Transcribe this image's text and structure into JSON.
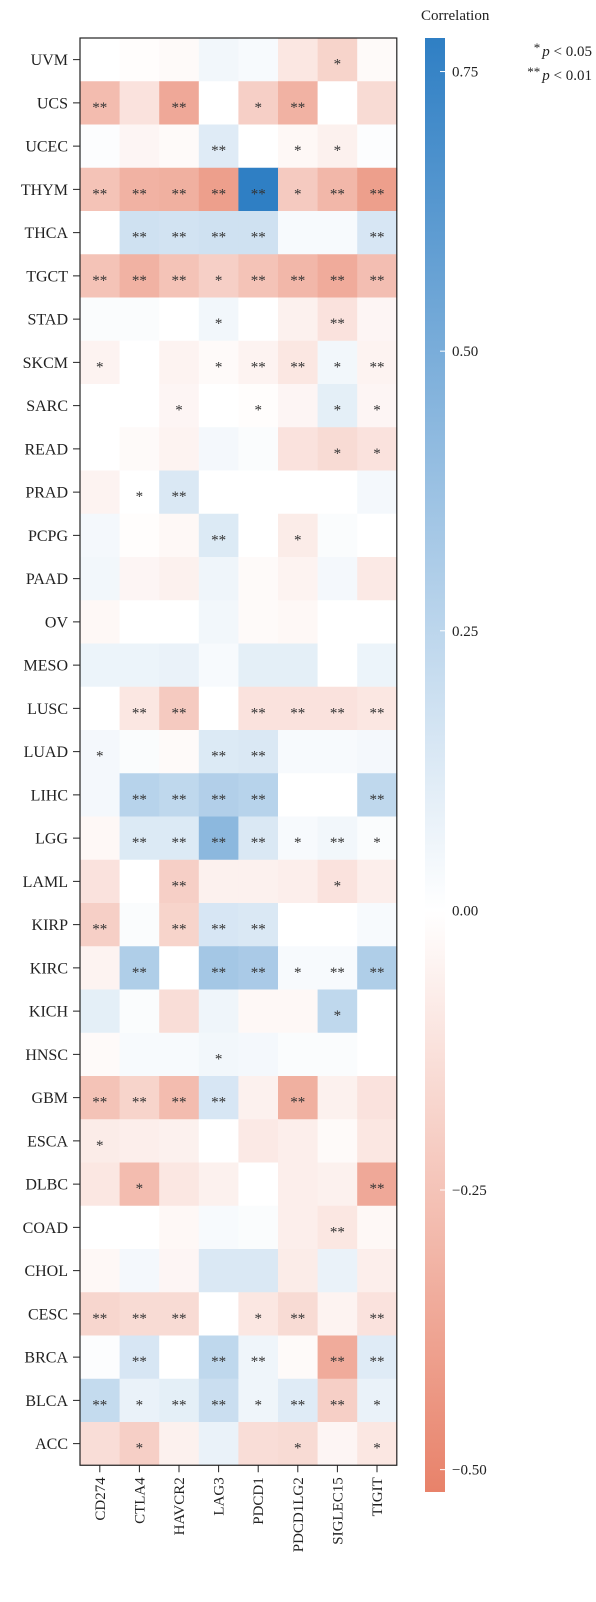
{
  "chart_data": {
    "type": "heatmap",
    "legend_title": "Correlation",
    "colorbar_ticks": [
      "0.75",
      "0.50",
      "0.25",
      "0.00",
      "−0.25",
      "−0.50"
    ],
    "colorbar_tick_values": [
      0.75,
      0.5,
      0.25,
      0.0,
      -0.25,
      -0.5
    ],
    "value_range": [
      -0.52,
      0.78
    ],
    "significance_legend": [
      {
        "stars": "*",
        "label_p": "p",
        "label_rest": " < 0.05"
      },
      {
        "stars": "**",
        "label_p": "p",
        "label_rest": " < 0.01"
      }
    ],
    "columns": [
      "CD274",
      "CTLA4",
      "HAVCR2",
      "LAG3",
      "PDCD1",
      "PDCD1LG2",
      "SIGLEC15",
      "TIGIT"
    ],
    "rows": [
      "UVM",
      "UCS",
      "UCEC",
      "THYM",
      "THCA",
      "TGCT",
      "STAD",
      "SKCM",
      "SARC",
      "READ",
      "PRAD",
      "PCPG",
      "PAAD",
      "OV",
      "MESO",
      "LUSC",
      "LUAD",
      "LIHC",
      "LGG",
      "LAML",
      "KIRP",
      "KIRC",
      "KICH",
      "HNSC",
      "GBM",
      "ESCA",
      "DLBC",
      "COAD",
      "CHOL",
      "CESC",
      "BRCA",
      "BLCA",
      "ACC"
    ],
    "values": [
      [
        0.0,
        -0.01,
        -0.02,
        0.05,
        0.03,
        -0.1,
        -0.18,
        -0.02
      ],
      [
        -0.28,
        -0.12,
        -0.36,
        0.0,
        -0.2,
        -0.32,
        0.0,
        -0.15
      ],
      [
        0.01,
        -0.04,
        -0.02,
        0.12,
        0.0,
        -0.03,
        -0.06,
        0.01
      ],
      [
        -0.25,
        -0.32,
        -0.33,
        -0.4,
        0.78,
        -0.22,
        -0.3,
        -0.4
      ],
      [
        0.0,
        0.18,
        0.17,
        0.18,
        0.18,
        0.03,
        0.03,
        0.15
      ],
      [
        -0.25,
        -0.32,
        -0.25,
        -0.2,
        -0.25,
        -0.3,
        -0.35,
        -0.27
      ],
      [
        0.02,
        0.02,
        0.0,
        0.05,
        0.0,
        -0.06,
        -0.12,
        -0.04
      ],
      [
        -0.05,
        0.0,
        -0.05,
        -0.02,
        -0.05,
        -0.1,
        0.05,
        -0.05
      ],
      [
        0.0,
        0.0,
        -0.04,
        0.0,
        -0.01,
        -0.04,
        0.1,
        -0.04
      ],
      [
        0.0,
        -0.02,
        -0.05,
        0.04,
        0.02,
        -0.12,
        -0.15,
        -0.12
      ],
      [
        -0.05,
        0.0,
        0.14,
        0.0,
        0.0,
        0.0,
        0.0,
        0.04
      ],
      [
        0.04,
        -0.01,
        -0.03,
        0.13,
        0.0,
        -0.08,
        0.02,
        0.0
      ],
      [
        0.05,
        -0.04,
        -0.06,
        0.06,
        -0.02,
        -0.05,
        0.04,
        -0.09
      ],
      [
        -0.03,
        0.0,
        0.0,
        0.05,
        -0.02,
        -0.03,
        0.0,
        0.0
      ],
      [
        0.07,
        0.07,
        0.08,
        0.03,
        0.1,
        0.1,
        0.0,
        0.07
      ],
      [
        0.0,
        -0.1,
        -0.22,
        0.0,
        -0.12,
        -0.12,
        -0.12,
        -0.1
      ],
      [
        0.04,
        0.02,
        -0.02,
        0.13,
        0.14,
        0.03,
        0.03,
        0.04
      ],
      [
        0.04,
        0.27,
        0.24,
        0.29,
        0.27,
        0.0,
        0.0,
        0.24
      ],
      [
        -0.03,
        0.13,
        0.13,
        0.43,
        0.14,
        0.03,
        0.05,
        0.02
      ],
      [
        -0.12,
        0.0,
        -0.2,
        -0.06,
        -0.06,
        -0.07,
        -0.12,
        -0.07
      ],
      [
        -0.2,
        0.02,
        -0.18,
        0.15,
        0.14,
        0.0,
        0.0,
        0.03
      ],
      [
        -0.05,
        0.3,
        0.0,
        0.34,
        0.32,
        0.03,
        0.03,
        0.3
      ],
      [
        0.1,
        0.02,
        -0.14,
        0.06,
        -0.03,
        -0.03,
        0.24,
        0.0
      ],
      [
        -0.02,
        0.03,
        0.03,
        0.05,
        0.04,
        0.02,
        0.02,
        0.0
      ],
      [
        -0.25,
        -0.18,
        -0.28,
        0.15,
        -0.06,
        -0.33,
        -0.06,
        -0.12
      ],
      [
        -0.08,
        -0.07,
        -0.06,
        0.0,
        -0.09,
        -0.07,
        -0.02,
        -0.1
      ],
      [
        -0.1,
        -0.28,
        -0.1,
        -0.06,
        0.0,
        -0.07,
        -0.06,
        -0.36
      ],
      [
        0.0,
        0.0,
        -0.03,
        0.03,
        0.02,
        -0.07,
        -0.1,
        -0.03
      ],
      [
        -0.03,
        0.04,
        -0.04,
        0.14,
        0.14,
        -0.08,
        0.08,
        -0.07
      ],
      [
        -0.17,
        -0.15,
        -0.15,
        0.0,
        -0.1,
        -0.15,
        -0.05,
        -0.12
      ],
      [
        0.01,
        0.15,
        0.0,
        0.24,
        0.06,
        -0.02,
        -0.35,
        0.12
      ],
      [
        0.22,
        0.08,
        0.1,
        0.2,
        0.06,
        0.12,
        -0.2,
        0.08
      ],
      [
        -0.14,
        -0.2,
        -0.06,
        0.08,
        -0.14,
        -0.15,
        -0.04,
        -0.1
      ]
    ],
    "significance": [
      [
        "",
        "",
        "",
        "",
        "",
        "",
        "*",
        ""
      ],
      [
        "**",
        "",
        "**",
        "",
        "*",
        "**",
        "",
        ""
      ],
      [
        "",
        "",
        "",
        "**",
        "",
        "*",
        "*",
        ""
      ],
      [
        "**",
        "**",
        "**",
        "**",
        "**",
        "*",
        "**",
        "**"
      ],
      [
        "",
        "**",
        "**",
        "**",
        "**",
        "",
        "",
        "**"
      ],
      [
        "**",
        "**",
        "**",
        "*",
        "**",
        "**",
        "**",
        "**"
      ],
      [
        "",
        "",
        "",
        "*",
        "",
        "",
        "**",
        ""
      ],
      [
        "*",
        "",
        "",
        "*",
        "**",
        "**",
        "*",
        "**"
      ],
      [
        "",
        "",
        "*",
        "",
        "*",
        "",
        "*",
        "*"
      ],
      [
        "",
        "",
        "",
        "",
        "",
        "",
        "*",
        "*"
      ],
      [
        "",
        "*",
        "**",
        "",
        "",
        "",
        "",
        ""
      ],
      [
        "",
        "",
        "",
        "**",
        "",
        "*",
        "",
        ""
      ],
      [
        "",
        "",
        "",
        "",
        "",
        "",
        "",
        ""
      ],
      [
        "",
        "",
        "",
        "",
        "",
        "",
        "",
        ""
      ],
      [
        "",
        "",
        "",
        "",
        "",
        "",
        "",
        ""
      ],
      [
        "",
        "**",
        "**",
        "",
        "**",
        "**",
        "**",
        "**"
      ],
      [
        "*",
        "",
        "",
        "**",
        "**",
        "",
        "",
        ""
      ],
      [
        "",
        "**",
        "**",
        "**",
        "**",
        "",
        "",
        "**"
      ],
      [
        "",
        "**",
        "**",
        "**",
        "**",
        "*",
        "**",
        "*"
      ],
      [
        "",
        "",
        "**",
        "",
        "",
        "",
        "*",
        ""
      ],
      [
        "**",
        "",
        "**",
        "**",
        "**",
        "",
        "",
        ""
      ],
      [
        "",
        "**",
        "",
        "**",
        "**",
        "*",
        "**",
        "**"
      ],
      [
        "",
        "",
        "",
        "",
        "",
        "",
        "*",
        ""
      ],
      [
        "",
        "",
        "",
        "*",
        "",
        "",
        "",
        ""
      ],
      [
        "**",
        "**",
        "**",
        "**",
        "",
        "**",
        "",
        ""
      ],
      [
        "*",
        "",
        "",
        "",
        "",
        "",
        "",
        ""
      ],
      [
        "",
        "*",
        "",
        "",
        "",
        "",
        "",
        "**"
      ],
      [
        "",
        "",
        "",
        "",
        "",
        "",
        "**",
        ""
      ],
      [
        "",
        "",
        "",
        "",
        "",
        "",
        "",
        ""
      ],
      [
        "**",
        "**",
        "**",
        "",
        "*",
        "**",
        "",
        "**"
      ],
      [
        "",
        "**",
        "",
        "**",
        "**",
        "",
        "**",
        "**"
      ],
      [
        "**",
        "*",
        "**",
        "**",
        "*",
        "**",
        "**",
        "*"
      ],
      [
        "",
        "*",
        "",
        "",
        "",
        "*",
        "",
        "*"
      ]
    ],
    "colors": {
      "negative": "#e8826a",
      "neutral": "#ffffff",
      "positive": "#2f7fc4"
    }
  }
}
